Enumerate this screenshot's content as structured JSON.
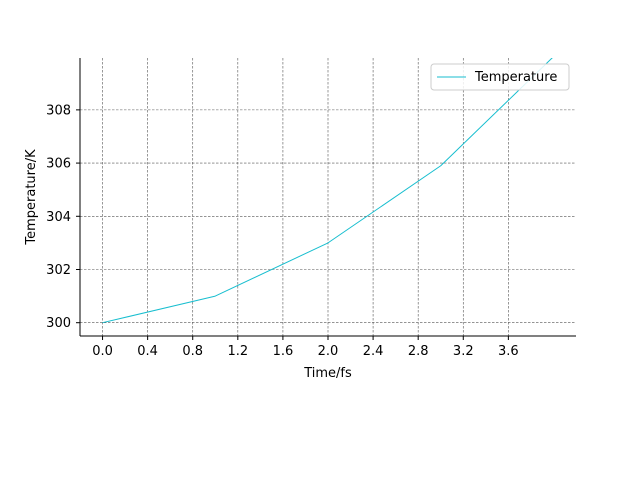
{
  "chart_data": {
    "type": "line",
    "title": "",
    "xlabel": "Time/fs",
    "ylabel": "Temperature/K",
    "xlim": [
      -0.2,
      4.2
    ],
    "ylim": [
      299.5,
      309.95
    ],
    "xticks": [
      0.0,
      0.4,
      0.8,
      1.2,
      1.6,
      2.0,
      2.4,
      2.8,
      3.2,
      3.6
    ],
    "xtick_labels": [
      "0.0",
      "0.4",
      "0.8",
      "1.2",
      "1.6",
      "2.0",
      "2.4",
      "2.8",
      "3.2",
      "3.6"
    ],
    "yticks": [
      300,
      302,
      304,
      306,
      308
    ],
    "ytick_labels": [
      "300",
      "302",
      "304",
      "306",
      "308"
    ],
    "grid": true,
    "legend_position": "top-right",
    "series": [
      {
        "name": "Temperature",
        "color": "#17becf",
        "x": [
          0.0,
          1.0,
          2.0,
          3.0,
          4.0
        ],
        "y": [
          300.0,
          301.0,
          303.0,
          305.9,
          310.0
        ]
      }
    ]
  }
}
